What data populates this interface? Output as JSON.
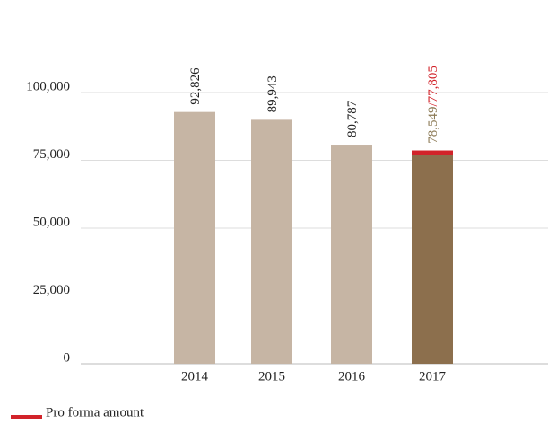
{
  "chart_data": {
    "type": "bar",
    "categories": [
      "2014",
      "2015",
      "2016",
      "2017"
    ],
    "values": [
      92826,
      89943,
      80787,
      78549
    ],
    "value_labels": [
      "92,826",
      "89,943",
      "80,787",
      "78,549"
    ],
    "colors": [
      "#c6b5a4",
      "#c6b5a4",
      "#c6b5a4",
      "#8c6f4d"
    ],
    "label_colors": [
      "#222222",
      "#222222",
      "#222222",
      "#8c7a55"
    ],
    "pro_forma": {
      "name": "Pro forma amount",
      "color": "#d2232a",
      "values": [
        null,
        null,
        null,
        77805
      ],
      "value_labels": [
        null,
        null,
        null,
        "/77,805"
      ]
    },
    "ylim": [
      0,
      100000
    ],
    "yticks": [
      {
        "value": 0,
        "label": "0"
      },
      {
        "value": 25000,
        "label": "25,000"
      },
      {
        "value": 50000,
        "label": "50,000"
      },
      {
        "value": 75000,
        "label": "75,000"
      },
      {
        "value": 100000,
        "label": "100,000"
      }
    ],
    "grid": true
  }
}
